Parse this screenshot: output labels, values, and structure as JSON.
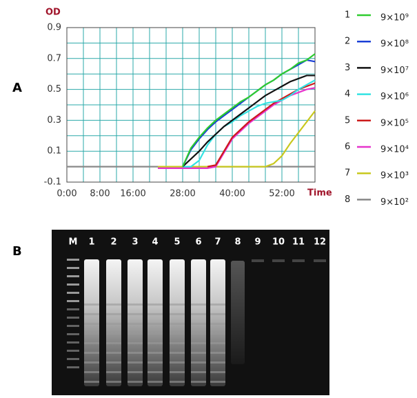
{
  "panel_a": "A",
  "chart_data": {
    "type": "line",
    "ylabel": "OD",
    "xlabel": "Time",
    "x": [
      0,
      2,
      4,
      6,
      8,
      10,
      12,
      14,
      16,
      18,
      20,
      22,
      24,
      26,
      28,
      30,
      32,
      34,
      36,
      38,
      40,
      42,
      44,
      46,
      48,
      50,
      52,
      54,
      56,
      58,
      60
    ],
    "xlim": [
      0,
      60
    ],
    "xticks": [
      {
        "value": 0,
        "label": "0:00"
      },
      {
        "value": 8,
        "label": "8:00"
      },
      {
        "value": 16,
        "label": "16:00"
      },
      {
        "value": 28,
        "label": "28:00"
      },
      {
        "value": 40,
        "label": "40:00"
      },
      {
        "value": 52,
        "label": "52:00"
      }
    ],
    "minor_xticks": [
      4,
      12,
      20,
      24,
      32,
      36,
      44,
      48,
      56
    ],
    "ylim": [
      -0.1,
      0.9
    ],
    "yticks": [
      -0.1,
      0.1,
      0.3,
      0.5,
      0.7,
      0.9
    ],
    "minor_yticks": [
      0,
      0.2,
      0.4,
      0.6,
      0.8
    ],
    "grid": true,
    "series": [
      {
        "label": "1",
        "name": "9×10⁹",
        "color": "#2ecc2e",
        "values": [
          null,
          null,
          null,
          null,
          null,
          null,
          null,
          null,
          null,
          null,
          null,
          null,
          null,
          null,
          0,
          0.12,
          0.19,
          0.25,
          0.3,
          0.34,
          0.38,
          0.42,
          0.45,
          0.49,
          0.53,
          0.56,
          0.6,
          0.63,
          0.67,
          0.69,
          0.73
        ]
      },
      {
        "label": "2",
        "name": "9×10⁸",
        "color": "#1a3fd6",
        "values": [
          null,
          null,
          null,
          null,
          null,
          null,
          null,
          null,
          null,
          null,
          null,
          null,
          null,
          null,
          0,
          0.11,
          0.18,
          0.24,
          0.29,
          0.33,
          0.37,
          0.41,
          0.45,
          0.49,
          0.53,
          0.56,
          0.6,
          0.63,
          0.66,
          0.69,
          0.68
        ]
      },
      {
        "label": "3",
        "name": "9×10⁷",
        "color": "#111111",
        "values": [
          null,
          null,
          null,
          null,
          null,
          null,
          null,
          null,
          null,
          null,
          null,
          null,
          null,
          null,
          0,
          0.05,
          0.1,
          0.16,
          0.21,
          0.26,
          0.3,
          0.34,
          0.38,
          0.42,
          0.46,
          0.49,
          0.52,
          0.55,
          0.57,
          0.59,
          0.59
        ]
      },
      {
        "label": "4",
        "name": "9×10⁶",
        "color": "#33e3e3",
        "values": [
          null,
          null,
          null,
          null,
          null,
          null,
          null,
          null,
          null,
          null,
          null,
          null,
          null,
          null,
          0,
          0,
          0.04,
          0.14,
          0.21,
          0.26,
          0.29,
          0.33,
          0.36,
          0.39,
          0.41,
          0.42,
          0.43,
          0.46,
          0.5,
          0.53,
          0.56
        ]
      },
      {
        "label": "5",
        "name": "9×10⁵",
        "color": "#cc1a1a",
        "values": [
          null,
          null,
          null,
          null,
          null,
          null,
          null,
          null,
          null,
          null,
          null,
          null,
          null,
          null,
          null,
          null,
          null,
          0,
          0.01,
          0.1,
          0.19,
          0.24,
          0.29,
          0.33,
          0.37,
          0.41,
          0.44,
          0.47,
          0.5,
          0.52,
          0.54
        ]
      },
      {
        "label": "6",
        "name": "9×10⁴",
        "color": "#e633cc",
        "values": [
          null,
          null,
          null,
          null,
          null,
          null,
          null,
          null,
          null,
          null,
          null,
          -0.01,
          -0.01,
          -0.01,
          -0.01,
          -0.01,
          -0.01,
          -0.01,
          0,
          0.09,
          0.18,
          0.23,
          0.28,
          0.32,
          0.36,
          0.4,
          0.43,
          0.46,
          0.48,
          0.5,
          0.51
        ]
      },
      {
        "label": "7",
        "name": "9×10³",
        "color": "#c8c81e",
        "values": [
          null,
          null,
          null,
          null,
          null,
          null,
          null,
          null,
          null,
          null,
          null,
          0,
          0,
          0,
          0,
          0,
          0,
          0,
          0,
          0,
          0,
          0,
          0,
          0,
          0,
          0.02,
          0.07,
          0.15,
          0.22,
          0.29,
          0.36
        ]
      },
      {
        "label": "8",
        "name": "9×10²",
        "color": "#888888",
        "values": [
          0,
          0,
          0,
          0,
          0,
          0,
          0,
          0,
          0,
          0,
          0,
          0,
          0,
          0,
          0,
          0,
          0,
          0,
          0,
          0,
          0,
          0,
          0,
          0,
          0,
          0,
          0,
          0,
          0,
          0,
          0
        ]
      }
    ]
  },
  "gel": {
    "label": "B",
    "lanes": [
      "M",
      "1",
      "2",
      "3",
      "4",
      "5",
      "6",
      "7",
      "8",
      "9",
      "10",
      "11",
      "12"
    ]
  }
}
